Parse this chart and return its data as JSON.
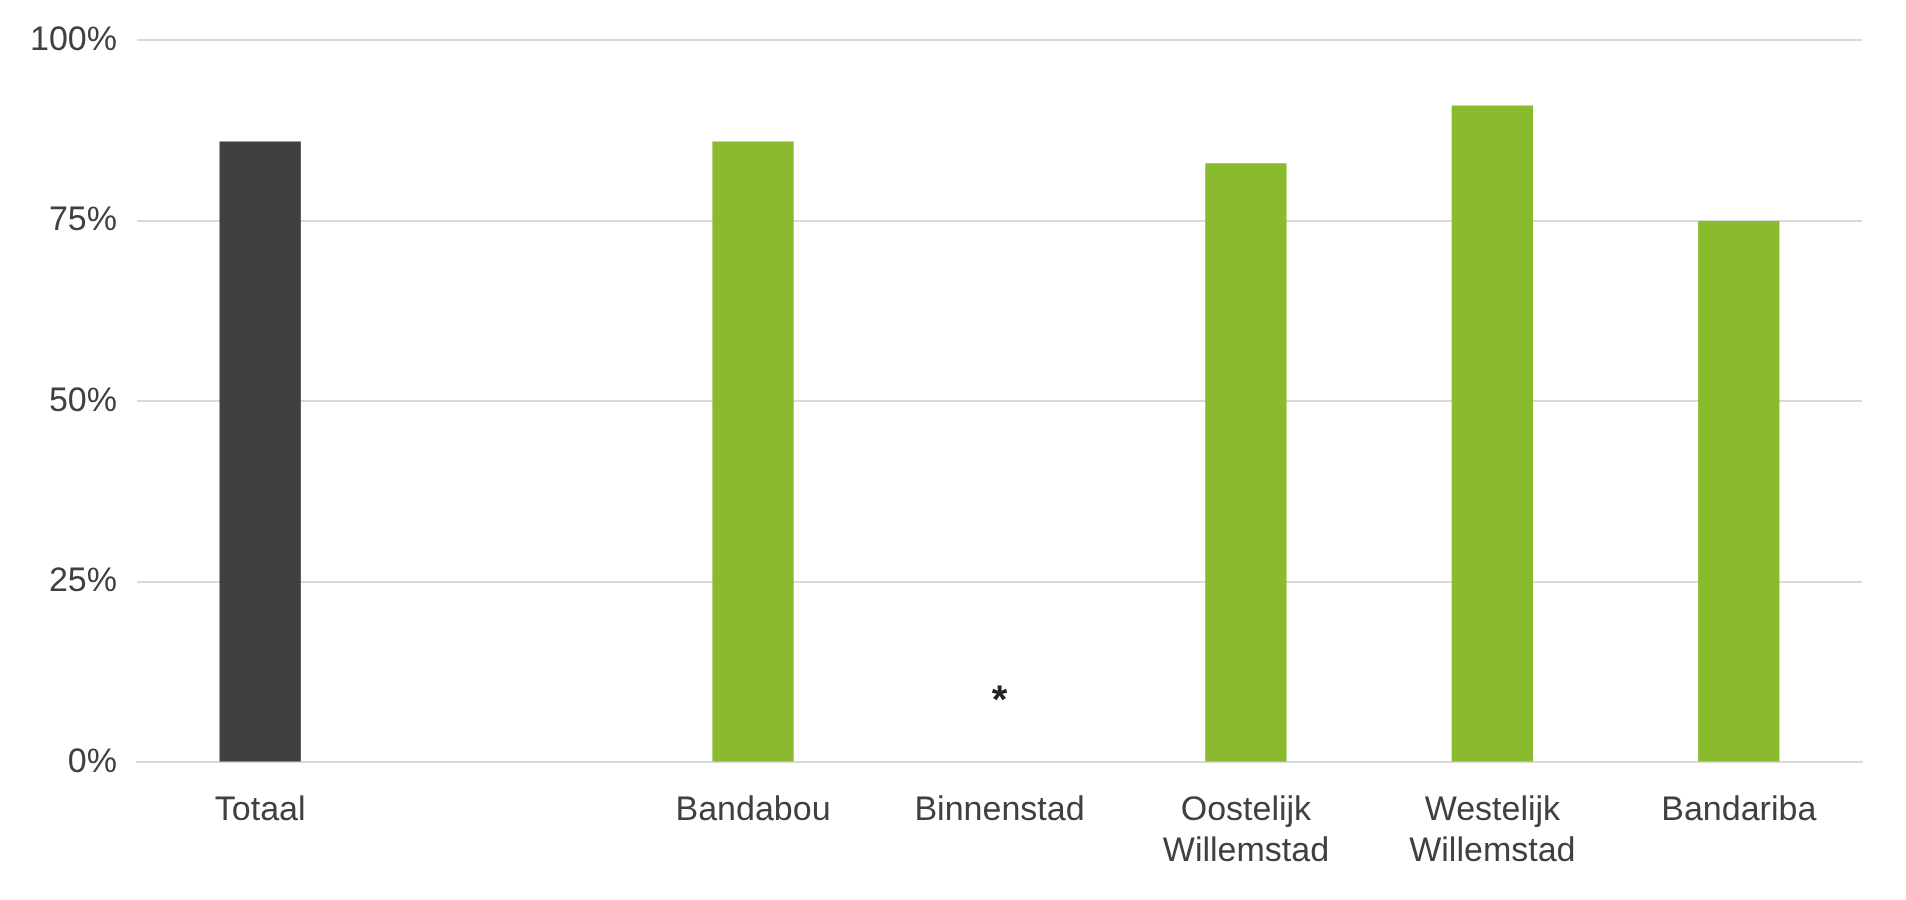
{
  "chart_data": {
    "type": "bar",
    "categories": [
      "Totaal",
      null,
      "Bandabou",
      "Binnenstad",
      "Oostelijk Willemstad",
      "Westelijk Willemstad",
      "Bandariba"
    ],
    "values": [
      86,
      null,
      86,
      null,
      83,
      91,
      75
    ],
    "colors": [
      "#404040",
      "#8aba2e",
      "#8aba2e",
      "#8aba2e",
      "#8aba2e",
      "#8aba2e",
      "#8aba2e"
    ],
    "ylim": [
      0,
      100
    ],
    "yticks": [
      {
        "value": 0,
        "label": "0%"
      },
      {
        "value": 25,
        "label": "25%"
      },
      {
        "value": 50,
        "label": "50%"
      },
      {
        "value": 75,
        "label": "75%"
      },
      {
        "value": 100,
        "label": "100%"
      }
    ],
    "grid": "y",
    "legend": false,
    "annotations": [
      "*"
    ]
  }
}
